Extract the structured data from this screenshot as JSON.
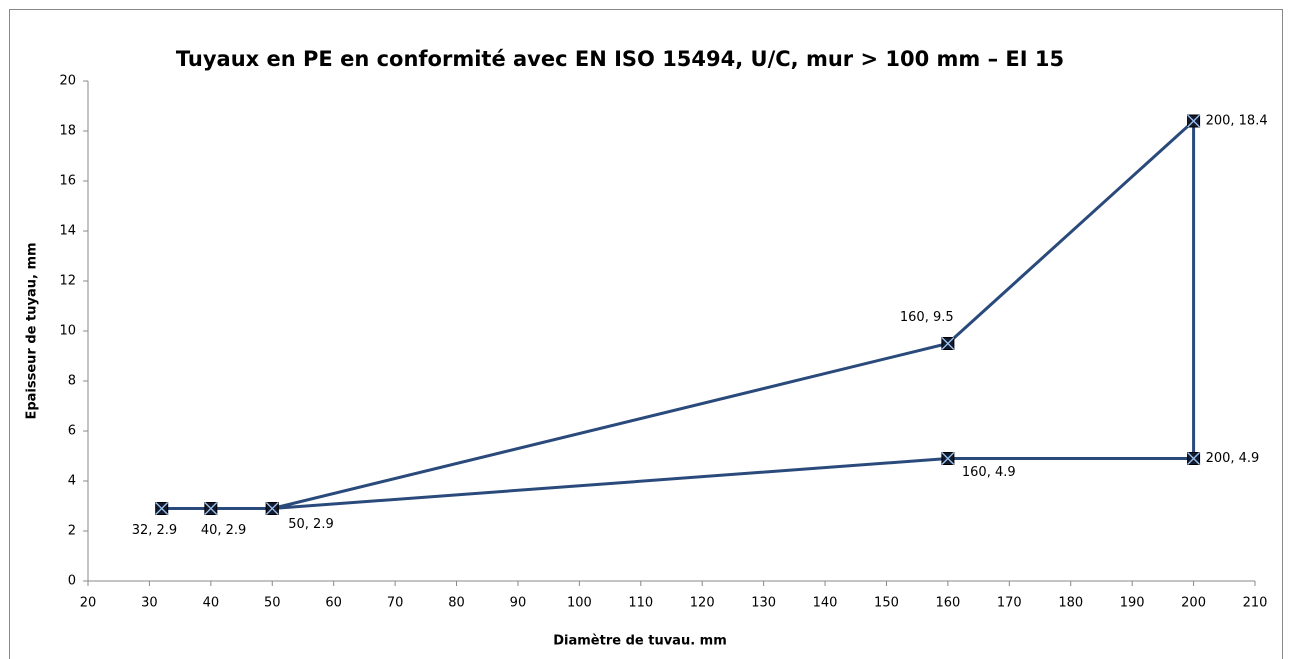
{
  "chart_data": {
    "type": "line",
    "title": "Tuyaux en PE  en conformité avec EN ISO 15494, U/C, mur > 100 mm – EI 15",
    "x_label": "Diamètre de tuvau. mm",
    "y_label": "Epaisseur de tuyau, mm",
    "series": [
      {
        "color": "#2a4a7c",
        "x": [
          32,
          40,
          50,
          160,
          200,
          200,
          160,
          50
        ],
        "values": [
          2.9,
          2.9,
          2.9,
          9.5,
          18.4,
          4.9,
          4.9,
          2.9
        ],
        "value_labels": [
          "32, 2.9",
          "40, 2.9",
          "50, 2.9",
          "160, 9.5",
          "200, 18.4",
          "200, 4.9",
          "160, 4.9",
          null
        ]
      }
    ],
    "xlim": [
      20,
      210
    ],
    "xticks": [
      20,
      30,
      40,
      50,
      60,
      70,
      80,
      90,
      100,
      110,
      120,
      130,
      140,
      150,
      160,
      170,
      180,
      190,
      200,
      210
    ],
    "ylim": [
      0,
      20
    ],
    "yticks": [
      0,
      2,
      4,
      6,
      8,
      10,
      12,
      14,
      16,
      18,
      20
    ],
    "grid": false
  }
}
